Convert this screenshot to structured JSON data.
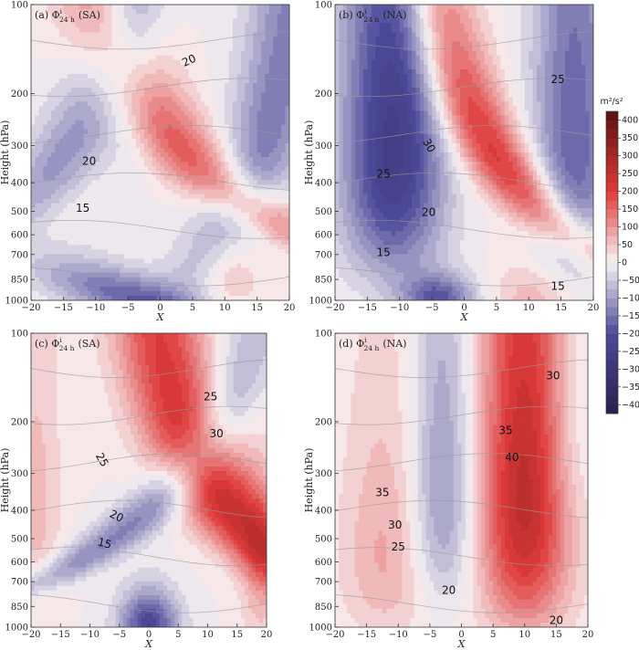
{
  "colors": {
    "negative_extreme": "#2b1f4e",
    "negative": "#4c4a9a",
    "neutral": "#f7f3f4",
    "positive": "#e03a3a",
    "positive_extreme": "#5a1212",
    "contour_line": "#9a9a9a"
  },
  "colorbar": {
    "unit": "m²/s²",
    "ticks": [
      400,
      350,
      300,
      250,
      200,
      150,
      100,
      50,
      0,
      -50,
      -100,
      -150,
      -200,
      -250,
      -300,
      -350,
      -400
    ],
    "levels": [
      -425,
      -400,
      -375,
      -350,
      -325,
      -300,
      -275,
      -250,
      -225,
      -200,
      -175,
      -150,
      -125,
      -100,
      -75,
      -50,
      -25,
      0,
      25,
      50,
      75,
      100,
      125,
      150,
      175,
      200,
      225,
      250,
      275,
      300,
      325,
      350,
      375,
      400,
      425
    ]
  },
  "chart_data": [
    {
      "type": "heatmap",
      "panel": "(a)",
      "title_prefix": "(a) Φ",
      "title_sup": "i",
      "title_sub": "24 h",
      "title_suffix": "(SA)",
      "xlabel": "X",
      "ylabel": "Height (hPa)",
      "xlim": [
        -20,
        20
      ],
      "ylim": [
        1000,
        100
      ],
      "xticks": [
        "−20",
        "−15",
        "−10",
        "−5",
        "0",
        "5",
        "10",
        "15",
        "20"
      ],
      "yticks": [
        "100",
        "200",
        "300",
        "400",
        "500",
        "600",
        "700",
        "850",
        "1000"
      ],
      "y_values": [
        100,
        200,
        300,
        400,
        500,
        600,
        700,
        850,
        1000
      ],
      "field_blobs": [
        {
          "x": -14,
          "p": 300,
          "sx": 4.5,
          "sp": 220,
          "amp": -110,
          "tilt": 0.004
        },
        {
          "x": 3,
          "p": 300,
          "sx": 5,
          "sp": 300,
          "amp": 165,
          "tilt": -0.006
        },
        {
          "x": -4,
          "p": 980,
          "sx": 7,
          "sp": 180,
          "amp": -170,
          "tilt": -0.004
        },
        {
          "x": 17,
          "p": 250,
          "sx": 4.5,
          "sp": 400,
          "amp": -140,
          "tilt": 0.002
        },
        {
          "x": -4,
          "p": 120,
          "sx": 3,
          "sp": 150,
          "amp": -70,
          "tilt": 0
        },
        {
          "x": 11,
          "p": 800,
          "sx": 3,
          "sp": 200,
          "amp": 60,
          "tilt": 0
        }
      ],
      "contour_labels": [
        {
          "text": "20",
          "x": 4.5,
          "p": 155,
          "rot": -25
        },
        {
          "text": "20",
          "x": -11,
          "p": 340,
          "rot": 0
        },
        {
          "text": "15",
          "x": -12,
          "p": 490,
          "rot": 0
        }
      ]
    },
    {
      "type": "heatmap",
      "panel": "(b)",
      "title_prefix": "(b) Φ",
      "title_sup": "i",
      "title_sub": "24 h",
      "title_suffix": "(NA)",
      "xlabel": "X",
      "ylabel": "Height (hPa)",
      "xlim": [
        -20,
        20
      ],
      "ylim": [
        1000,
        100
      ],
      "xticks": [
        "−20",
        "−15",
        "−10",
        "−5",
        "0",
        "5",
        "10",
        "15",
        "20"
      ],
      "yticks": [
        "100",
        "200",
        "300",
        "400",
        "500",
        "600",
        "700",
        "850",
        "1000"
      ],
      "y_values": [
        100,
        200,
        300,
        400,
        500,
        600,
        700,
        850,
        1000
      ],
      "field_blobs": [
        {
          "x": -11,
          "p": 300,
          "sx": 5.5,
          "sp": 330,
          "amp": -260,
          "tilt": 0
        },
        {
          "x": 4,
          "p": 300,
          "sx": 4,
          "sp": 330,
          "amp": 210,
          "tilt": -0.004
        },
        {
          "x": 17,
          "p": 300,
          "sx": 4.5,
          "sp": 360,
          "amp": -170,
          "tilt": 0
        },
        {
          "x": -4,
          "p": 980,
          "sx": 4,
          "sp": 120,
          "amp": -180,
          "tilt": 0
        },
        {
          "x": 11,
          "p": 980,
          "sx": 5,
          "sp": 200,
          "amp": 70,
          "tilt": 0
        }
      ],
      "contour_labels": [
        {
          "text": "25",
          "x": 14.5,
          "p": 180,
          "rot": 0
        },
        {
          "text": "30",
          "x": -5.5,
          "p": 300,
          "rot": 60
        },
        {
          "text": "25",
          "x": -12.5,
          "p": 375,
          "rot": 0
        },
        {
          "text": "20",
          "x": -5.5,
          "p": 505,
          "rot": 0
        },
        {
          "text": "15",
          "x": -12.5,
          "p": 690,
          "rot": 0
        },
        {
          "text": "15",
          "x": 14.5,
          "p": 900,
          "rot": 0
        }
      ]
    },
    {
      "type": "heatmap",
      "panel": "(c)",
      "title_prefix": "(c) Φ",
      "title_sup": "i",
      "title_sub": "24 h",
      "title_suffix": "(SA)",
      "xlabel": "X",
      "ylabel": "Height (hPa)",
      "xlim": [
        -20,
        20
      ],
      "ylim": [
        1000,
        100
      ],
      "xticks": [
        "−20",
        "−15",
        "−10",
        "−5",
        "0",
        "5",
        "10",
        "15",
        "20"
      ],
      "yticks": [
        "100",
        "200",
        "300",
        "400",
        "500",
        "600",
        "700",
        "850",
        "1000"
      ],
      "y_values": [
        100,
        200,
        300,
        400,
        500,
        600,
        700,
        850,
        1000
      ],
      "field_blobs": [
        {
          "x": 11,
          "p": 330,
          "sx": 5.5,
          "sp": 380,
          "amp": 240,
          "tilt": -0.004
        },
        {
          "x": -3,
          "p": 450,
          "sx": 4,
          "sp": 330,
          "amp": -130,
          "tilt": 0.006
        },
        {
          "x": 0,
          "p": 960,
          "sx": 3.5,
          "sp": 160,
          "amp": -210,
          "tilt": 0
        },
        {
          "x": -19,
          "p": 400,
          "sx": 3,
          "sp": 350,
          "amp": 60,
          "tilt": 0
        },
        {
          "x": 19,
          "p": 700,
          "sx": 2.5,
          "sp": 300,
          "amp": 70,
          "tilt": 0
        }
      ],
      "contour_labels": [
        {
          "text": "25",
          "x": 10.5,
          "p": 165,
          "rot": 0
        },
        {
          "text": "30",
          "x": 11.5,
          "p": 220,
          "rot": 0
        },
        {
          "text": "25",
          "x": -8,
          "p": 270,
          "rot": 60
        },
        {
          "text": "20",
          "x": -5.5,
          "p": 420,
          "rot": 25
        },
        {
          "text": "15",
          "x": -7.5,
          "p": 520,
          "rot": 15
        }
      ]
    },
    {
      "type": "heatmap",
      "panel": "(d)",
      "title_prefix": "(d) Φ",
      "title_sup": "i",
      "title_sub": "24 h",
      "title_suffix": "(NA)",
      "xlabel": "X",
      "ylabel": "Height (hPa)",
      "xlim": [
        -20,
        20
      ],
      "ylim": [
        1000,
        100
      ],
      "xticks": [
        "−20",
        "−15",
        "−10",
        "−5",
        "0",
        "5",
        "10",
        "15",
        "20"
      ],
      "yticks": [
        "100",
        "200",
        "300",
        "400",
        "500",
        "600",
        "700",
        "850",
        "1000"
      ],
      "y_values": [
        100,
        200,
        300,
        400,
        500,
        600,
        700,
        850,
        1000
      ],
      "field_blobs": [
        {
          "x": 10,
          "p": 360,
          "sx": 5,
          "sp": 420,
          "amp": 260,
          "tilt": 0
        },
        {
          "x": -3,
          "p": 350,
          "sx": 3.5,
          "sp": 300,
          "amp": -120,
          "tilt": 0
        },
        {
          "x": -12,
          "p": 550,
          "sx": 5,
          "sp": 350,
          "amp": 80,
          "tilt": 0
        },
        {
          "x": 17,
          "p": 200,
          "sx": 3,
          "sp": 150,
          "amp": -40,
          "tilt": 0
        }
      ],
      "contour_labels": [
        {
          "text": "30",
          "x": 14.5,
          "p": 140,
          "rot": 0
        },
        {
          "text": "35",
          "x": 7,
          "p": 215,
          "rot": 0
        },
        {
          "text": "40",
          "x": 8,
          "p": 265,
          "rot": 0
        },
        {
          "text": "35",
          "x": -12.5,
          "p": 350,
          "rot": 0
        },
        {
          "text": "30",
          "x": -10.5,
          "p": 450,
          "rot": 0
        },
        {
          "text": "25",
          "x": -10,
          "p": 535,
          "rot": 0
        },
        {
          "text": "20",
          "x": -2,
          "p": 750,
          "rot": 0
        },
        {
          "text": "20",
          "x": 15,
          "p": 950,
          "rot": 0
        }
      ]
    }
  ]
}
